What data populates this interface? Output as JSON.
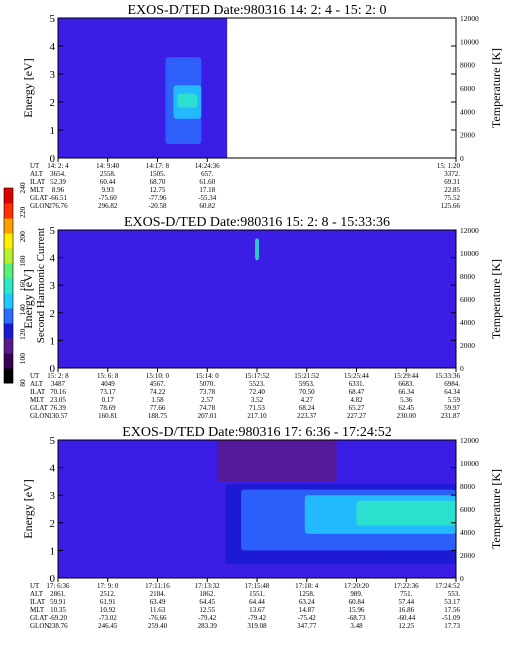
{
  "colorbar": {
    "label": "Second Harmonic Current",
    "ticks": [
      "240",
      "220",
      "200",
      "180",
      "160",
      "140",
      "120",
      "100",
      "80"
    ],
    "colors": [
      "#000000",
      "#3a0055",
      "#5a1a8c",
      "#1a1ad0",
      "#2f6cff",
      "#22c9ff",
      "#2ee6c8",
      "#56f07a",
      "#b8f02c",
      "#fff000",
      "#ffa000",
      "#ff3000",
      "#e00000"
    ]
  },
  "orbit_row_labels": [
    "UT",
    "ALT",
    "ILAT",
    "MLT",
    "GLAT",
    "GLON"
  ],
  "chart_data": [
    {
      "type": "heatmap",
      "title": "EXOS-D/TED   Date:980316  14: 2: 4 - 15: 2: 0",
      "ylabel": "Energy [eV]",
      "y2label": "Temperature [K]",
      "ylim": [
        0,
        5
      ],
      "y_ticks": [
        "0",
        "1",
        "2",
        "3",
        "4",
        "5"
      ],
      "y2lim": [
        0,
        12000
      ],
      "y2_ticks": [
        "0",
        "2000",
        "4000",
        "6000",
        "8000",
        "10000",
        "12000"
      ],
      "data_extent_fraction": 0.425,
      "background_color": "#3a1ee6",
      "features": [
        {
          "x": [
            0.27,
            0.36
          ],
          "y": [
            0.5,
            3.6
          ],
          "color": "#2f6cff"
        },
        {
          "x": [
            0.29,
            0.36
          ],
          "y": [
            1.4,
            2.6
          ],
          "color": "#22c9ff"
        },
        {
          "x": [
            0.3,
            0.35
          ],
          "y": [
            1.8,
            2.3
          ],
          "color": "#2ee6c8"
        }
      ],
      "orbit": {
        "ut": [
          "14: 2: 4",
          "14: 9:40",
          "14:17: 8",
          "14:24:36",
          "15: 1:20"
        ],
        "alt": [
          "3654.",
          "2558.",
          "1505.",
          "657.",
          "3372."
        ],
        "ilat": [
          "52.39",
          "60.44",
          "68.70",
          "61.60",
          "69.31"
        ],
        "mlt": [
          "8.96",
          "9.93",
          "12.75",
          "17.18",
          "22.85"
        ],
        "glat": [
          "-66.51",
          "-75.60",
          "-77.96",
          "-55.34",
          "75.52"
        ],
        "glon": [
          "276.76",
          "296.82",
          "-20.58",
          "60.82",
          "125.66"
        ],
        "column_fractions": [
          0.0,
          0.125,
          0.25,
          0.375,
          1.0
        ]
      }
    },
    {
      "type": "heatmap",
      "title": "EXOS-D/TED   Date:980316  15: 2: 8 - 15:33:36",
      "ylabel": "Energy [eV]",
      "y2label": "Temperature [K]",
      "ylim": [
        0,
        5
      ],
      "y_ticks": [
        "0",
        "1",
        "2",
        "3",
        "4",
        "5"
      ],
      "y2lim": [
        0,
        12000
      ],
      "y2_ticks": [
        "0",
        "2000",
        "4000",
        "6000",
        "8000",
        "10000",
        "12000"
      ],
      "data_extent_fraction": 1.0,
      "background_color": "#3a1ee6",
      "features": [
        {
          "x": [
            0.495,
            0.505
          ],
          "y": [
            3.9,
            4.7
          ],
          "color": "#2ee6c8"
        }
      ],
      "orbit": {
        "ut": [
          "15: 2: 8",
          "15: 6: 8",
          "15:10: 0",
          "15:14: 0",
          "15:17:52",
          "15:21:52",
          "15:25:44",
          "15:29:44",
          "15:33:36"
        ],
        "alt": [
          "3487",
          "4049",
          "4567.",
          "5070.",
          "5523.",
          "5953.",
          "6331.",
          "6683.",
          "6984."
        ],
        "ilat": [
          "70.16",
          "73.17",
          "74.22",
          "73.78",
          "72.40",
          "70.50",
          "68.47",
          "66.34",
          "64.34"
        ],
        "mlt": [
          "23.05",
          "0.17",
          "1.58",
          "2.57",
          "3.52",
          "4.27",
          "4.82",
          "5.36",
          "5.59"
        ],
        "glat": [
          "76.39",
          "78.69",
          "77.66",
          "74.78",
          "71.53",
          "68.24",
          "65.27",
          "62.45",
          "59.97"
        ],
        "glon": [
          "130.57",
          "160.81",
          "188.75",
          "207.01",
          "217.10",
          "223.37",
          "227.27",
          "230.00",
          "231.87"
        ],
        "column_fractions": [
          0.0,
          0.125,
          0.25,
          0.375,
          0.5,
          0.625,
          0.75,
          0.875,
          1.0
        ]
      }
    },
    {
      "type": "heatmap",
      "title": "EXOS-D/TED   Date:980316  17: 6:36 - 17:24:52",
      "ylabel": "Energy [eV]",
      "y2label": "Temperature [K]",
      "ylim": [
        0,
        5
      ],
      "y_ticks": [
        "0",
        "1",
        "2",
        "3",
        "4",
        "5"
      ],
      "y2lim": [
        0,
        12000
      ],
      "y2_ticks": [
        "0",
        "2000",
        "4000",
        "6000",
        "8000",
        "10000",
        "12000"
      ],
      "data_extent_fraction": 1.0,
      "background_color": "#3a1ee6",
      "features": [
        {
          "x": [
            0.42,
            1.0
          ],
          "y": [
            0.5,
            3.4
          ],
          "color": "#1a1ad0"
        },
        {
          "x": [
            0.46,
            1.0
          ],
          "y": [
            1.0,
            3.2
          ],
          "color": "#2f6cff"
        },
        {
          "x": [
            0.62,
            1.0
          ],
          "y": [
            1.6,
            3.0
          ],
          "color": "#22c9ff"
        },
        {
          "x": [
            0.75,
            1.0
          ],
          "y": [
            1.9,
            2.8
          ],
          "color": "#2ee6c8"
        },
        {
          "x": [
            0.4,
            0.7
          ],
          "y": [
            3.5,
            5.0
          ],
          "color": "#5a1a8c"
        }
      ],
      "orbit": {
        "ut": [
          "17: 6:36",
          "17: 9: 0",
          "17:11:16",
          "17:13:32",
          "17:15:48",
          "17:18: 4",
          "17:20:20",
          "17:22:36",
          "17:24:52"
        ],
        "alt": [
          "2861.",
          "2512.",
          "2184.",
          "1862.",
          "1551.",
          "1258.",
          "989.",
          "751.",
          "553."
        ],
        "ilat": [
          "59.91",
          "61.91",
          "63.49",
          "64.45",
          "64.44",
          "63.24",
          "60.84",
          "57.44",
          "53.17"
        ],
        "mlt": [
          "10.35",
          "10.92",
          "11.63",
          "12.55",
          "13.67",
          "14.87",
          "15.96",
          "16.86",
          "17.56"
        ],
        "glat": [
          "-69.20",
          "-73.02",
          "-76.66",
          "-79.42",
          "-79.42",
          "-75.42",
          "-68.73",
          "-60.44",
          "-51.09"
        ],
        "glon": [
          "238.76",
          "246.45",
          "259.40",
          "283.39",
          "319.08",
          "347.77",
          "3.48",
          "12.25",
          "17.73"
        ],
        "column_fractions": [
          0.0,
          0.125,
          0.25,
          0.375,
          0.5,
          0.625,
          0.75,
          0.875,
          1.0
        ]
      }
    }
  ]
}
